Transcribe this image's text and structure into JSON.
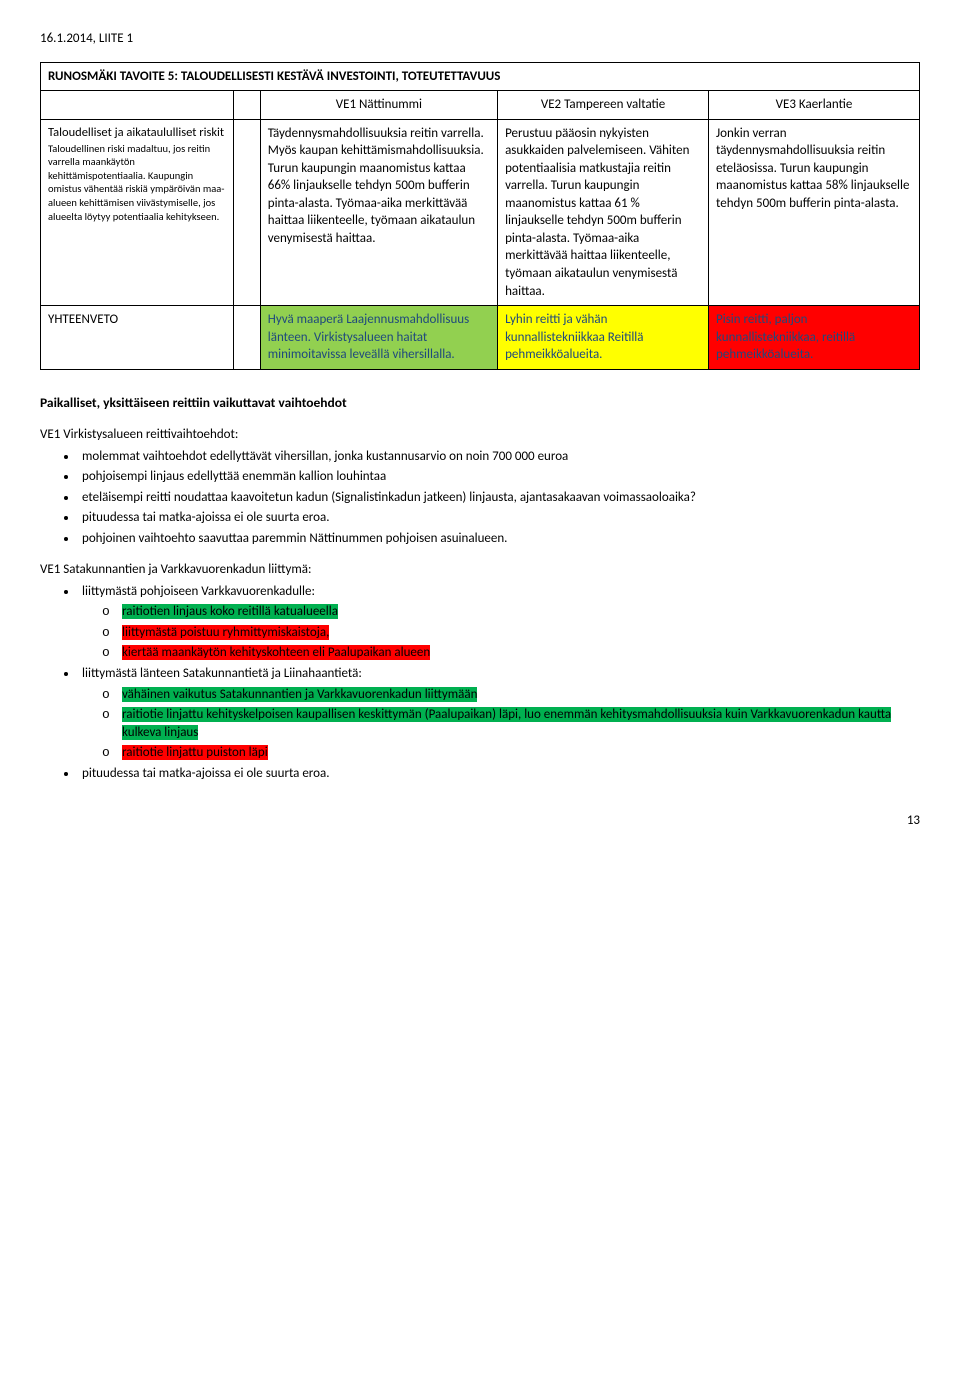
{
  "header": "16.1.2014, LIITE 1",
  "table": {
    "title": "RUNOSMÄKI TAVOITE 5: TALOUDELLISESTI KESTÄVÄ INVESTOINTI, TOTEUTETTAVUUS",
    "col_headers": {
      "ve1": "VE1 Nättinummi",
      "ve2": "VE2 Tampereen valtatie",
      "ve3": "VE3 Kaerlantie"
    },
    "row1": {
      "label_title": "Taloudelliset ja aikataululliset riskit",
      "label_sub": "Taloudellinen riski madaltuu, jos reitin varrella maankäytön kehittämispotentiaalia. Kaupungin omistus vähentää riskiä ympäröivän maa-alueen kehittämisen viivästymiselle, jos alueelta löytyy potentiaalia kehitykseen.",
      "ve1": "Täydennysmahdollisuuksia reitin varrella. Myös kaupan kehittämismahdollisuuksia. Turun kaupungin maanomistus kattaa 66% linjaukselle tehdyn 500m bufferin pinta-alasta. Työmaa-aika merkittävää haittaa liikenteelle, työmaan aikataulun venymisestä haittaa.",
      "ve2": "Perustuu pääosin nykyisten asukkaiden palvelemiseen. Vähiten potentiaalisia matkustajia reitin varrella. Turun kaupungin maanomistus kattaa 61 % linjaukselle tehdyn 500m bufferin pinta-alasta. Työmaa-aika merkittävää haittaa liikenteelle, työmaan aikataulun venymisestä haittaa.",
      "ve3": "Jonkin verran täydennysmahdollisuuksia reitin eteläosissa. Turun kaupungin maanomistus kattaa 58% linjaukselle tehdyn 500m bufferin pinta-alasta."
    },
    "row2": {
      "label": "YHTEENVETO",
      "ve1": "Hyvä maaperä Laajennusmahdollisuus länteen. Virkistysalueen haitat minimoitavissa leveällä vihersillalla.",
      "ve2": "Lyhin reitti ja vähän kunnallistekniikkaa Reitillä pehmeikköalueita.",
      "ve3": "Pisin reitti, paljon kunnallistekniikkaa, reitillä pehmeikköalueita."
    }
  },
  "section_title": "Paikalliset, yksittäiseen reittiin vaikuttavat vaihtoehdot",
  "sec1": {
    "title": "VE1 Virkistysalueen reittivaihtoehdot:",
    "b1": "molemmat vaihtoehdot edellyttävät vihersillan, jonka kustannusarvio on noin 700 000 euroa",
    "b2": "pohjoisempi linjaus edellyttää enemmän kallion louhintaa",
    "b3": "eteläisempi reitti noudattaa kaavoitetun kadun (Signalistinkadun jatkeen) linjausta, ajantasakaavan voimassaoloaika?",
    "b4": "pituudessa tai matka-ajoissa ei ole suurta eroa.",
    "b5": "pohjoinen vaihtoehto saavuttaa paremmin Nättinummen pohjoisen asuinalueen."
  },
  "sec2": {
    "title": "VE1 Satakunnantien ja Varkkavuorenkadun liittymä:",
    "b1": "liittymästä pohjoiseen Varkkavuorenkadulle:",
    "b1a": "raitiotien linjaus koko reitillä katualueella",
    "b1b": "liittymästä poistuu ryhmittymiskaistoja,",
    "b1c": "kiertää maankäytön kehityskohteen eli Paalupaikan alueen",
    "b2": "liittymästä länteen Satakunnantietä ja Liinahaantietä:",
    "b2a": "vähäinen vaikutus Satakunnantien ja Varkkavuorenkadun liittymään",
    "b2b": "raitiotie linjattu kehityskelpoisen kaupallisen keskittymän (Paalupaikan) läpi, luo enemmän kehitysmahdollisuuksia kuin Varkkavuorenkadun kautta kulkeva linjaus",
    "b2c": "raitiotie linjattu puiston läpi",
    "b3": "pituudessa tai matka-ajoissa ei ole suurta eroa."
  },
  "page_number": "13"
}
